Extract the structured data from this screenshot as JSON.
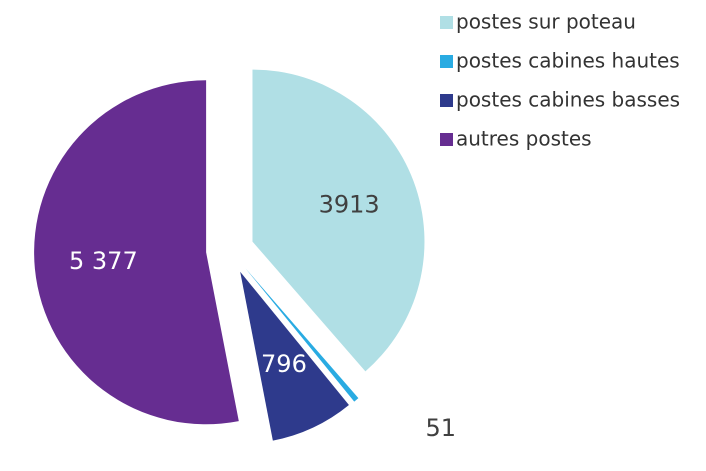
{
  "chart_data": {
    "type": "pie",
    "categories": [
      "postes sur poteau",
      "postes cabines hautes",
      "postes cabines basses",
      "autres postes"
    ],
    "values": [
      3913,
      51,
      796,
      5377
    ],
    "value_labels": [
      "3913",
      "51",
      "796",
      "5 377"
    ],
    "colors": [
      "#b0dfe5",
      "#29abe2",
      "#2e3a8c",
      "#662d91"
    ],
    "legend": "top-right"
  }
}
